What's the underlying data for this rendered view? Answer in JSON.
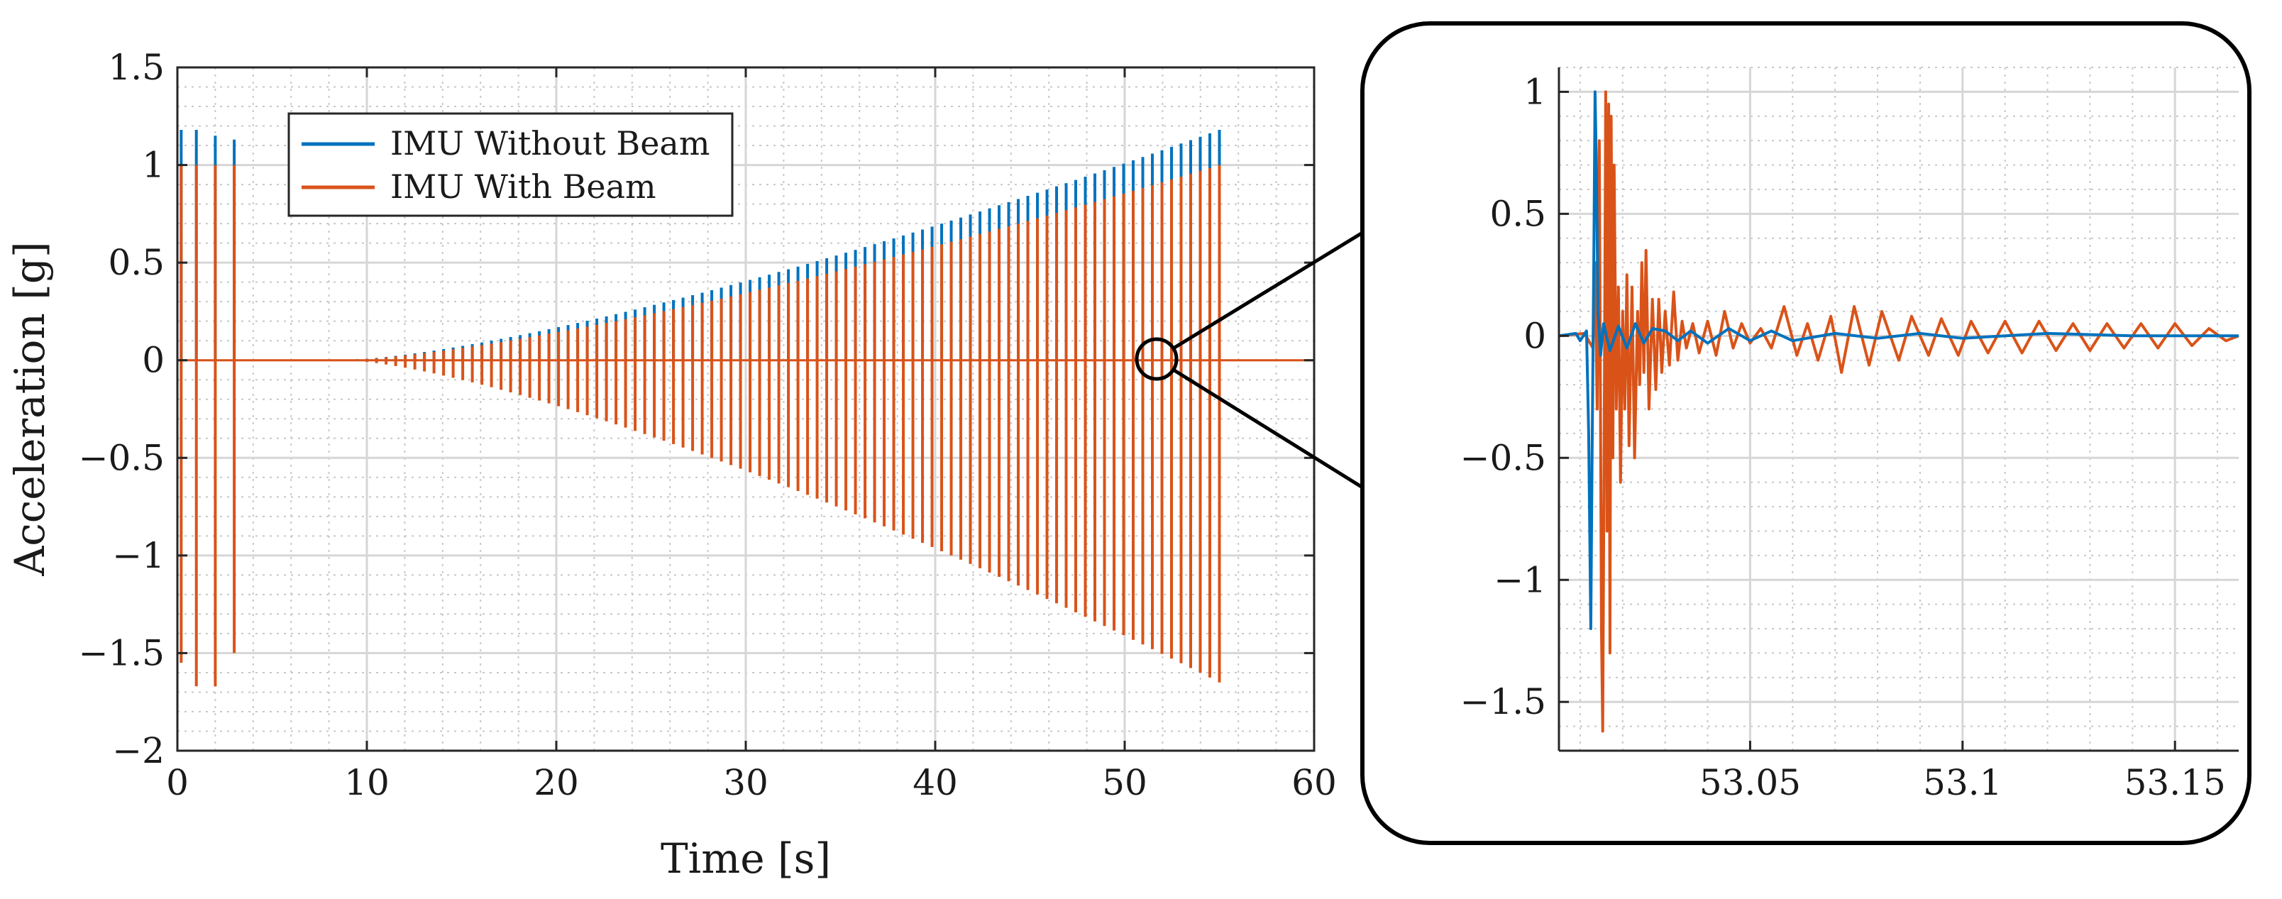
{
  "figure": {
    "colors": {
      "blue": "#0072BD",
      "orange": "#D95319",
      "grid": "#d6d6d6",
      "axis": "#262626"
    }
  },
  "chart_data": [
    {
      "id": "main",
      "type": "line",
      "title": "",
      "xlabel": "Time [s]",
      "ylabel": "Acceleration [g]",
      "xlim": [
        0,
        60
      ],
      "ylim": [
        -2,
        1.5
      ],
      "xticks": [
        0,
        10,
        20,
        30,
        40,
        50,
        60
      ],
      "xtick_labels": [
        "0",
        "10",
        "20",
        "30",
        "40",
        "50",
        "60"
      ],
      "yticks": [
        1.5,
        1,
        0.5,
        0,
        -0.5,
        -1,
        -1.5,
        -2
      ],
      "ytick_labels": [
        "1.5",
        "1",
        "0.5",
        "0",
        "−0.5",
        "−1",
        "−1.5",
        "−2"
      ],
      "grid": true,
      "minor_grid": true,
      "legend_position": "top-left",
      "series": [
        {
          "name": "IMU Without Beam",
          "color": "#0072BD",
          "description": "impulse spikes; peak values",
          "spike_times": [
            0.2,
            1.0,
            2.0,
            3.0
          ],
          "spike_max": [
            1.18,
            1.18,
            1.15,
            1.13
          ],
          "ramp_start_time": 9.5,
          "ramp_end_time": 55.0,
          "ramp_peak_start": 0.005,
          "ramp_peak_end": 1.18
        },
        {
          "name": "IMU With Beam",
          "color": "#D95319",
          "spike_times": [
            0.2,
            1.0,
            2.0,
            3.0
          ],
          "spike_max": [
            1.0,
            1.0,
            1.0,
            1.0
          ],
          "spike_min": [
            -1.55,
            -1.67,
            -1.67,
            -1.5
          ],
          "ramp_start_time": 9.5,
          "ramp_end_time": 55.0,
          "ramp_peak_start": 0.005,
          "ramp_peak_end": 1.0,
          "ramp_trough_start": -0.005,
          "ramp_trough_end": -1.65
        }
      ],
      "zoom_marker_time": 52.3
    },
    {
      "id": "inset",
      "type": "line",
      "title": "",
      "xlabel": "",
      "ylabel": "",
      "xlim": [
        53.005,
        53.165
      ],
      "ylim": [
        -1.7,
        1.1
      ],
      "xticks": [
        53.05,
        53.1,
        53.15
      ],
      "xtick_labels": [
        "53.05",
        "53.1",
        "53.15"
      ],
      "yticks": [
        1,
        0.5,
        0,
        -0.5,
        -1,
        -1.5
      ],
      "ytick_labels": [
        "1",
        "0.5",
        "0",
        "−0.5",
        "−1",
        "−1.5"
      ],
      "grid": true,
      "minor_grid": true,
      "series": [
        {
          "name": "IMU Without Beam",
          "color": "#0072BD",
          "points": [
            [
              53.005,
              0
            ],
            [
              53.009,
              0.01
            ],
            [
              53.01,
              -0.02
            ],
            [
              53.0115,
              0.02
            ],
            [
              53.012,
              -0.4
            ],
            [
              53.0125,
              -1.2
            ],
            [
              53.0128,
              -0.5
            ],
            [
              53.0132,
              0.3
            ],
            [
              53.0135,
              1.0
            ],
            [
              53.0138,
              0.7
            ],
            [
              53.0142,
              0.1
            ],
            [
              53.0148,
              -0.08
            ],
            [
              53.0155,
              0.05
            ],
            [
              53.017,
              -0.06
            ],
            [
              53.019,
              0.04
            ],
            [
              53.021,
              -0.05
            ],
            [
              53.023,
              0.05
            ],
            [
              53.025,
              -0.03
            ],
            [
              53.027,
              0.03
            ],
            [
              53.03,
              0.02
            ],
            [
              53.033,
              -0.02
            ],
            [
              53.036,
              0.02
            ],
            [
              53.04,
              -0.03
            ],
            [
              53.045,
              0.03
            ],
            [
              53.05,
              -0.02
            ],
            [
              53.055,
              0.02
            ],
            [
              53.06,
              -0.02
            ],
            [
              53.07,
              0.01
            ],
            [
              53.08,
              -0.01
            ],
            [
              53.09,
              0.01
            ],
            [
              53.1,
              -0.01
            ],
            [
              53.12,
              0.01
            ],
            [
              53.14,
              0.0
            ],
            [
              53.165,
              0.0
            ]
          ]
        },
        {
          "name": "IMU With Beam",
          "color": "#D95319",
          "points": [
            [
              53.005,
              0
            ],
            [
              53.011,
              0.01
            ],
            [
              53.013,
              -0.05
            ],
            [
              53.0135,
              0.3
            ],
            [
              53.014,
              -0.3
            ],
            [
              53.0145,
              0.8
            ],
            [
              53.015,
              -1.2
            ],
            [
              53.0153,
              -1.62
            ],
            [
              53.0157,
              -0.2
            ],
            [
              53.016,
              1.0
            ],
            [
              53.0163,
              -0.8
            ],
            [
              53.0167,
              0.95
            ],
            [
              53.017,
              -1.3
            ],
            [
              53.0173,
              0.9
            ],
            [
              53.0177,
              -0.5
            ],
            [
              53.018,
              0.7
            ],
            [
              53.0185,
              -0.3
            ],
            [
              53.019,
              0.2
            ],
            [
              53.0195,
              -0.6
            ],
            [
              53.02,
              0.1
            ],
            [
              53.0205,
              -0.3
            ],
            [
              53.021,
              0.25
            ],
            [
              53.0215,
              -0.45
            ],
            [
              53.0222,
              0.2
            ],
            [
              53.0228,
              -0.5
            ],
            [
              53.0235,
              0.1
            ],
            [
              53.024,
              -0.2
            ],
            [
              53.0245,
              0.3
            ],
            [
              53.025,
              -0.15
            ],
            [
              53.0255,
              0.35
            ],
            [
              53.0262,
              -0.3
            ],
            [
              53.027,
              0.15
            ],
            [
              53.0278,
              -0.22
            ],
            [
              53.0285,
              0.15
            ],
            [
              53.0292,
              -0.15
            ],
            [
              53.03,
              0.1
            ],
            [
              53.031,
              -0.12
            ],
            [
              53.032,
              0.18
            ],
            [
              53.033,
              -0.1
            ],
            [
              53.034,
              0.06
            ],
            [
              53.035,
              -0.05
            ],
            [
              53.0365,
              0.05
            ],
            [
              53.038,
              -0.07
            ],
            [
              53.04,
              0.06
            ],
            [
              53.042,
              -0.08
            ],
            [
              53.044,
              0.1
            ],
            [
              53.046,
              -0.05
            ],
            [
              53.048,
              0.05
            ],
            [
              53.05,
              -0.03
            ],
            [
              53.0525,
              0.03
            ],
            [
              53.055,
              -0.05
            ],
            [
              53.058,
              0.12
            ],
            [
              53.061,
              -0.08
            ],
            [
              53.0635,
              0.05
            ],
            [
              53.066,
              -0.1
            ],
            [
              53.069,
              0.08
            ],
            [
              53.0715,
              -0.15
            ],
            [
              53.0745,
              0.12
            ],
            [
              53.078,
              -0.12
            ],
            [
              53.081,
              0.1
            ],
            [
              53.085,
              -0.1
            ],
            [
              53.088,
              0.08
            ],
            [
              53.092,
              -0.08
            ],
            [
              53.095,
              0.07
            ],
            [
              53.099,
              -0.08
            ],
            [
              53.102,
              0.06
            ],
            [
              53.106,
              -0.07
            ],
            [
              53.11,
              0.06
            ],
            [
              53.114,
              -0.07
            ],
            [
              53.118,
              0.06
            ],
            [
              53.122,
              -0.06
            ],
            [
              53.126,
              0.05
            ],
            [
              53.13,
              -0.06
            ],
            [
              53.134,
              0.05
            ],
            [
              53.138,
              -0.05
            ],
            [
              53.142,
              0.05
            ],
            [
              53.146,
              -0.05
            ],
            [
              53.15,
              0.05
            ],
            [
              53.154,
              -0.04
            ],
            [
              53.158,
              0.03
            ],
            [
              53.162,
              -0.02
            ],
            [
              53.165,
              0.0
            ]
          ]
        }
      ]
    }
  ]
}
